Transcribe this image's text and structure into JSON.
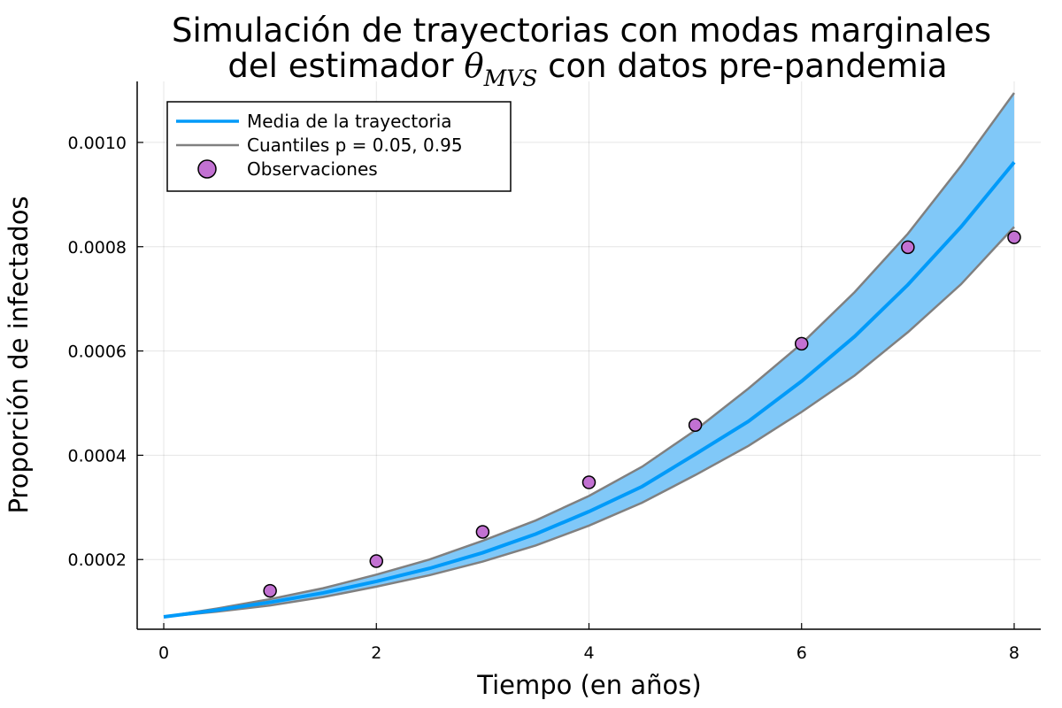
{
  "chart_data": {
    "type": "line",
    "title_line1": "Simulación de trayectorias con modas marginales",
    "title_line2_pre": "del estimador ",
    "title_theta": "θ",
    "title_sub": "MVS",
    "title_line2_post": " con datos pre-pandemia",
    "xlabel": "Tiempo (en años)",
    "ylabel": "Proporción de infectados",
    "xlim": [
      -0.25,
      8.25
    ],
    "ylim": [
      6.63e-05,
      0.001117
    ],
    "x_ticks": [
      0,
      2,
      4,
      6,
      8
    ],
    "x_tick_labels": [
      "0",
      "2",
      "4",
      "6",
      "8"
    ],
    "y_ticks": [
      0.0002,
      0.0004,
      0.0006,
      0.0008,
      0.001
    ],
    "y_tick_labels": [
      "0.0002",
      "0.0004",
      "0.0006",
      "0.0008",
      "0.0010"
    ],
    "grid": true,
    "legend_position": "top-left",
    "legend": {
      "mean": "Media de la trayectoria",
      "quantiles": "Cuantiles p = 0.05, 0.95",
      "observations": "Observaciones"
    },
    "series": [
      {
        "key": "mean",
        "x": [
          0,
          0.5,
          1,
          1.5,
          2,
          2.5,
          3,
          3.5,
          4,
          4.5,
          5,
          5.5,
          6,
          6.5,
          7,
          7.5,
          8
        ],
        "values": [
          9e-05,
          0.000103,
          0.000118,
          0.000136,
          0.000158,
          0.000183,
          0.000213,
          0.000249,
          0.000292,
          0.00034,
          0.000402,
          0.000465,
          0.000542,
          0.000628,
          0.000727,
          0.000838,
          0.000962
        ]
      },
      {
        "key": "q05",
        "x": [
          0,
          0.5,
          1,
          1.5,
          2,
          2.5,
          3,
          3.5,
          4,
          4.5,
          5,
          5.5,
          6,
          6.5,
          7,
          7.5,
          8
        ],
        "values": [
          9e-05,
          0.0001,
          0.000112,
          0.000128,
          0.000148,
          0.00017,
          0.000196,
          0.000227,
          0.000265,
          0.000309,
          0.000362,
          0.000418,
          0.000483,
          0.000553,
          0.000636,
          0.000728,
          0.000838
        ]
      },
      {
        "key": "q95",
        "x": [
          0,
          0.5,
          1,
          1.5,
          2,
          2.5,
          3,
          3.5,
          4,
          4.5,
          5,
          5.5,
          6,
          6.5,
          7,
          7.5,
          8
        ],
        "values": [
          9e-05,
          0.000106,
          0.000124,
          0.000145,
          0.000171,
          0.0002,
          0.000236,
          0.000275,
          0.000322,
          0.000378,
          0.000448,
          0.000528,
          0.000614,
          0.000713,
          0.000825,
          0.000955,
          0.001095
        ]
      }
    ],
    "observations": {
      "x": [
        1,
        2,
        3,
        4,
        5,
        6,
        7,
        8
      ],
      "values": [
        0.00014,
        0.000197,
        0.000253,
        0.000348,
        0.000458,
        0.000614,
        0.000799,
        0.000818
      ]
    },
    "colors": {
      "mean": "#009af9",
      "band": "#80c8f8",
      "quantile": "#808080",
      "observation": "#c271d2"
    }
  }
}
